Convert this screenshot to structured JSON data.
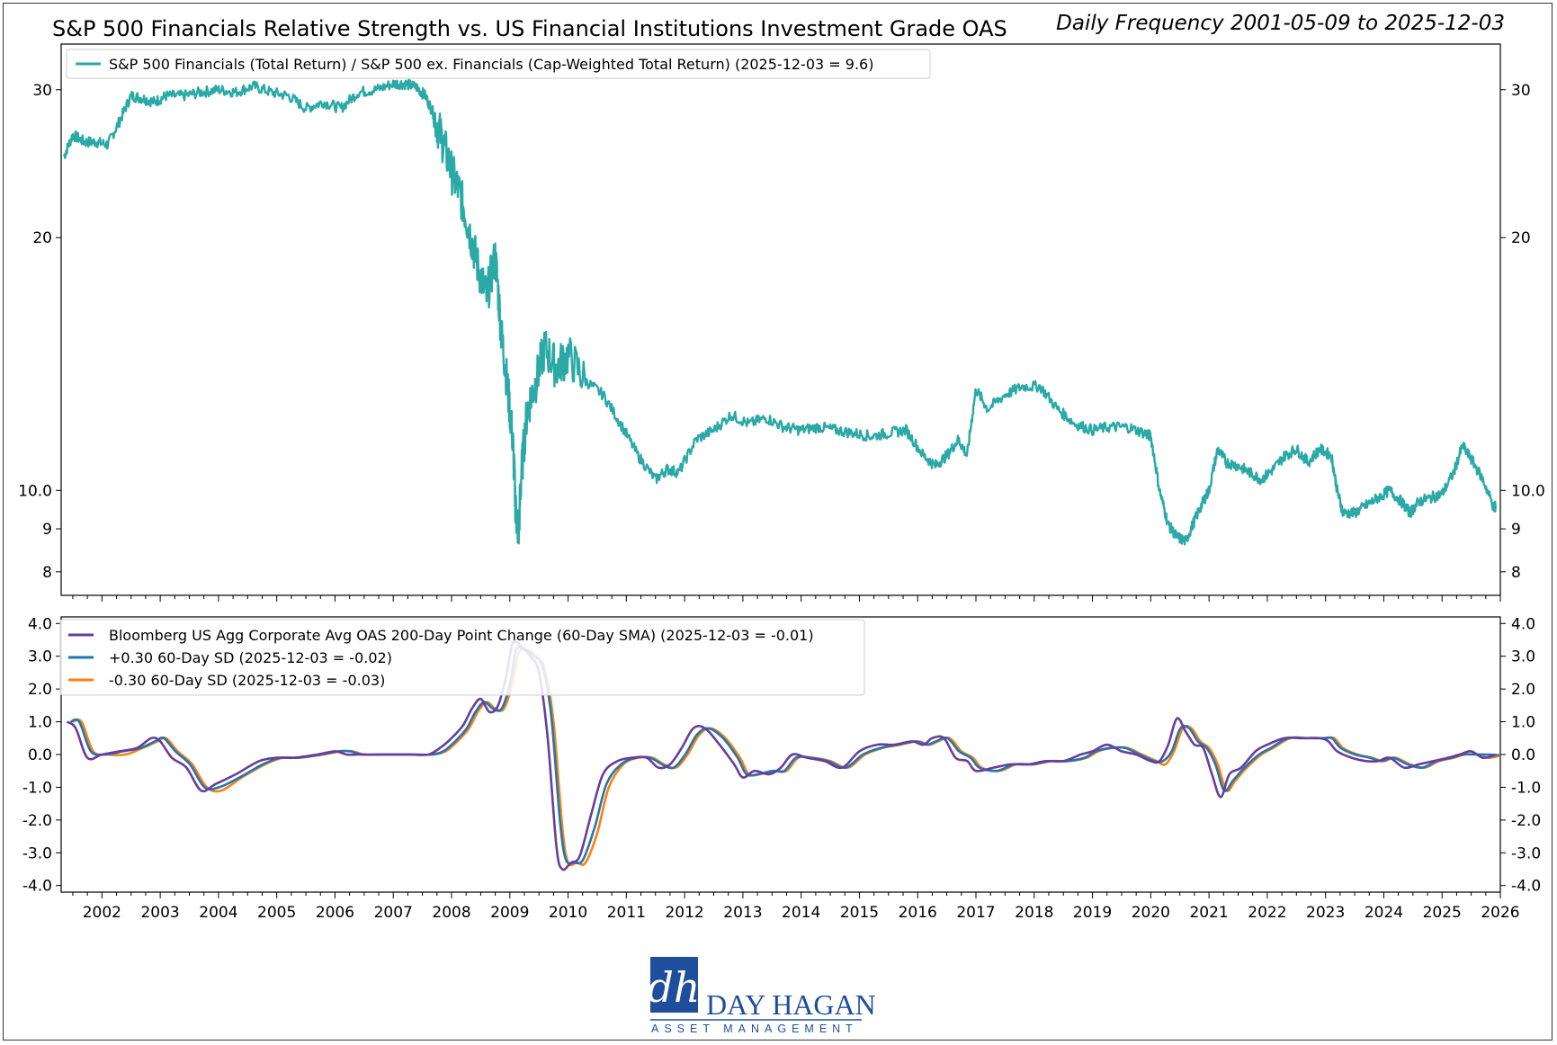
{
  "title": "S&P 500 Financials Relative Strength vs. US Financial Institutions Investment Grade OAS",
  "subtitle": "Daily Frequency 2001-05-09 to 2025-12-03",
  "logo": {
    "mark": "dh",
    "name": "DAY HAGAN",
    "tagline": "ASSET MANAGEMENT",
    "color": "#1f4e9c"
  },
  "chart_data": [
    {
      "type": "line",
      "panel": "top",
      "yscale": "log",
      "ylim": [
        7.5,
        34
      ],
      "yticks": [
        8,
        9,
        10,
        20,
        30
      ],
      "ytick_labels": [
        "8",
        "9",
        "10.0",
        "20",
        "30"
      ],
      "xlim": [
        2001.3,
        2026.0
      ],
      "legend_location": "top-left",
      "series": [
        {
          "name": "S&P 500 Financials (Total Return) / S&P 500 ex. Financials (Cap-Weighted Total Return) (2025-12-03 = 9.6)",
          "color": "#2aa9a6",
          "x": [
            2001.35,
            2001.5,
            2001.7,
            2001.9,
            2002.1,
            2002.3,
            2002.5,
            2002.7,
            2002.9,
            2003.1,
            2003.4,
            2003.7,
            2004.0,
            2004.3,
            2004.6,
            2004.9,
            2005.2,
            2005.5,
            2005.8,
            2006.1,
            2006.4,
            2006.7,
            2007.0,
            2007.2,
            2007.4,
            2007.55,
            2007.7,
            2007.85,
            2008.0,
            2008.15,
            2008.3,
            2008.45,
            2008.6,
            2008.75,
            2008.85,
            2008.95,
            2009.05,
            2009.1,
            2009.15,
            2009.2,
            2009.3,
            2009.45,
            2009.6,
            2009.8,
            2010.0,
            2010.3,
            2010.6,
            2010.9,
            2011.2,
            2011.5,
            2011.7,
            2011.9,
            2012.2,
            2012.5,
            2012.8,
            2013.1,
            2013.4,
            2013.7,
            2014.0,
            2014.3,
            2014.6,
            2014.9,
            2015.2,
            2015.5,
            2015.8,
            2016.1,
            2016.3,
            2016.5,
            2016.7,
            2016.85,
            2017.0,
            2017.2,
            2017.5,
            2017.8,
            2018.1,
            2018.4,
            2018.7,
            2019.0,
            2019.3,
            2019.6,
            2019.9,
            2020.0,
            2020.15,
            2020.3,
            2020.45,
            2020.6,
            2020.75,
            2020.9,
            2021.0,
            2021.15,
            2021.3,
            2021.5,
            2021.7,
            2021.9,
            2022.1,
            2022.3,
            2022.5,
            2022.7,
            2022.9,
            2023.1,
            2023.2,
            2023.3,
            2023.5,
            2023.7,
            2023.9,
            2024.1,
            2024.3,
            2024.45,
            2024.6,
            2024.8,
            2025.0,
            2025.2,
            2025.35,
            2025.5,
            2025.7,
            2025.9,
            2025.92
          ],
          "values": [
            25.0,
            26.5,
            26.0,
            26.0,
            25.8,
            27.5,
            29.5,
            29.3,
            29.0,
            29.5,
            29.5,
            29.8,
            30.0,
            29.8,
            30.3,
            29.8,
            29.5,
            28.5,
            29.0,
            28.5,
            29.8,
            30.0,
            30.5,
            30.5,
            30.2,
            29.5,
            28.0,
            26.0,
            24.0,
            22.5,
            20.5,
            18.5,
            17.0,
            19.0,
            15.5,
            13.5,
            11.5,
            9.5,
            8.9,
            10.5,
            12.5,
            13.5,
            14.8,
            14.0,
            14.5,
            13.5,
            13.0,
            12.0,
            11.0,
            10.3,
            10.6,
            10.5,
            11.5,
            11.8,
            12.3,
            12.0,
            12.2,
            11.9,
            11.8,
            11.9,
            11.8,
            11.7,
            11.6,
            11.7,
            11.8,
            11.0,
            10.7,
            11.0,
            11.5,
            11.0,
            13.2,
            12.5,
            13.0,
            13.3,
            13.3,
            12.5,
            12.0,
            11.8,
            11.9,
            11.9,
            11.7,
            11.6,
            10.0,
            9.1,
            8.8,
            8.7,
            9.2,
            9.7,
            10.0,
            11.2,
            10.8,
            10.7,
            10.5,
            10.3,
            10.6,
            11.0,
            11.2,
            10.8,
            11.2,
            11.0,
            10.0,
            9.4,
            9.4,
            9.6,
            9.8,
            10.0,
            9.7,
            9.4,
            9.7,
            9.8,
            9.9,
            10.5,
            11.3,
            10.9,
            10.3,
            9.5,
            9.6
          ]
        }
      ]
    },
    {
      "type": "line",
      "panel": "bottom",
      "ylim": [
        -4.2,
        4.2
      ],
      "yticks": [
        -4,
        -3,
        -2,
        -1,
        0,
        1,
        2,
        3,
        4
      ],
      "ytick_labels": [
        "-4.0",
        "-3.0",
        "-2.0",
        "-1.0",
        "0.0",
        "1.0",
        "2.0",
        "3.0",
        "4.0"
      ],
      "xlim": [
        2001.3,
        2026.0
      ],
      "xticks": [
        2002,
        2003,
        2004,
        2005,
        2006,
        2007,
        2008,
        2009,
        2010,
        2011,
        2012,
        2013,
        2014,
        2015,
        2016,
        2017,
        2018,
        2019,
        2020,
        2021,
        2022,
        2023,
        2024,
        2025,
        2026
      ],
      "xtick_labels": [
        "2002",
        "2003",
        "2004",
        "2005",
        "2006",
        "2007",
        "2008",
        "2009",
        "2010",
        "2011",
        "2012",
        "2013",
        "2014",
        "2015",
        "2016",
        "2017",
        "2018",
        "2019",
        "2020",
        "2021",
        "2022",
        "2023",
        "2024",
        "2025",
        "2026"
      ],
      "legend_location": "top-left",
      "x": [
        2001.4,
        2001.55,
        2001.75,
        2002.0,
        2002.3,
        2002.6,
        2002.85,
        2003.0,
        2003.2,
        2003.45,
        2003.7,
        2003.95,
        2004.3,
        2004.7,
        2005.0,
        2005.3,
        2005.7,
        2006.0,
        2006.2,
        2006.4,
        2006.7,
        2007.0,
        2007.3,
        2007.6,
        2007.8,
        2008.0,
        2008.2,
        2008.35,
        2008.5,
        2008.65,
        2008.8,
        2008.95,
        2009.05,
        2009.2,
        2009.35,
        2009.5,
        2009.65,
        2009.8,
        2009.9,
        2010.05,
        2010.2,
        2010.4,
        2010.6,
        2010.85,
        2011.1,
        2011.35,
        2011.55,
        2011.75,
        2011.95,
        2012.15,
        2012.35,
        2012.6,
        2012.85,
        2013.0,
        2013.2,
        2013.45,
        2013.65,
        2013.85,
        2014.1,
        2014.4,
        2014.7,
        2015.0,
        2015.3,
        2015.6,
        2015.9,
        2016.1,
        2016.25,
        2016.45,
        2016.65,
        2016.85,
        2017.0,
        2017.3,
        2017.6,
        2017.9,
        2018.2,
        2018.5,
        2018.8,
        2019.0,
        2019.25,
        2019.5,
        2019.75,
        2020.0,
        2020.15,
        2020.3,
        2020.45,
        2020.6,
        2020.75,
        2020.9,
        2021.05,
        2021.2,
        2021.35,
        2021.55,
        2021.8,
        2022.0,
        2022.3,
        2022.6,
        2022.9,
        2023.05,
        2023.2,
        2023.45,
        2023.7,
        2023.9,
        2024.1,
        2024.35,
        2024.6,
        2024.85,
        2025.1,
        2025.3,
        2025.5,
        2025.7,
        2025.92
      ],
      "series": [
        {
          "name": "Bloomberg US Agg Corporate Avg OAS 200-Day Point Change (60-Day SMA) (2025-12-03 = -0.01)",
          "color": "#6a3d9a",
          "values": [
            1.0,
            0.8,
            -0.1,
            0.0,
            0.1,
            0.2,
            0.5,
            0.4,
            -0.1,
            -0.4,
            -1.1,
            -0.9,
            -0.6,
            -0.2,
            -0.1,
            -0.1,
            0.0,
            0.1,
            0.0,
            0.0,
            0.0,
            0.0,
            0.0,
            0.0,
            0.2,
            0.5,
            0.9,
            1.4,
            1.7,
            1.3,
            1.5,
            2.5,
            3.4,
            3.3,
            3.0,
            2.5,
            0.5,
            -2.8,
            -3.5,
            -3.3,
            -3.1,
            -1.8,
            -0.6,
            -0.2,
            -0.1,
            -0.1,
            -0.4,
            -0.3,
            0.2,
            0.8,
            0.8,
            0.3,
            -0.3,
            -0.7,
            -0.5,
            -0.6,
            -0.4,
            0.0,
            -0.1,
            -0.2,
            -0.4,
            0.1,
            0.3,
            0.3,
            0.4,
            0.3,
            0.5,
            0.5,
            -0.1,
            -0.2,
            -0.5,
            -0.4,
            -0.3,
            -0.3,
            -0.2,
            -0.2,
            0.0,
            0.1,
            0.3,
            0.1,
            0.0,
            -0.2,
            -0.2,
            0.3,
            1.1,
            0.7,
            0.3,
            0.2,
            -0.6,
            -1.3,
            -0.6,
            -0.4,
            0.1,
            0.3,
            0.5,
            0.5,
            0.5,
            0.4,
            0.1,
            -0.1,
            -0.2,
            -0.2,
            -0.1,
            -0.4,
            -0.3,
            -0.2,
            -0.1,
            0.0,
            0.1,
            -0.1,
            -0.01
          ]
        },
        {
          "name": "+0.30 60-Day SD (2025-12-03 = -0.02)",
          "color": "#1f77b4",
          "lag": 0.06,
          "values": [
            1.0,
            1.0,
            0.1,
            0.0,
            0.1,
            0.2,
            0.4,
            0.5,
            0.1,
            -0.3,
            -1.0,
            -1.0,
            -0.7,
            -0.3,
            -0.1,
            -0.1,
            0.0,
            0.1,
            0.1,
            0.0,
            0.0,
            0.0,
            0.0,
            0.0,
            0.1,
            0.4,
            0.8,
            1.3,
            1.6,
            1.4,
            1.4,
            2.2,
            3.2,
            3.2,
            3.0,
            2.7,
            1.2,
            -2.0,
            -3.2,
            -3.3,
            -3.2,
            -2.2,
            -0.9,
            -0.3,
            -0.1,
            -0.1,
            -0.3,
            -0.4,
            0.0,
            0.6,
            0.8,
            0.5,
            -0.1,
            -0.6,
            -0.6,
            -0.5,
            -0.5,
            -0.1,
            -0.1,
            -0.2,
            -0.4,
            0.0,
            0.2,
            0.3,
            0.4,
            0.3,
            0.4,
            0.5,
            0.1,
            -0.1,
            -0.4,
            -0.5,
            -0.3,
            -0.3,
            -0.2,
            -0.2,
            -0.1,
            0.1,
            0.2,
            0.2,
            0.0,
            -0.2,
            -0.2,
            0.1,
            0.8,
            0.8,
            0.4,
            0.2,
            -0.3,
            -1.1,
            -0.8,
            -0.4,
            0.0,
            0.2,
            0.5,
            0.5,
            0.5,
            0.5,
            0.2,
            0.0,
            -0.1,
            -0.2,
            -0.1,
            -0.3,
            -0.4,
            -0.2,
            -0.1,
            0.0,
            0.0,
            0.0,
            -0.02
          ]
        },
        {
          "name": "-0.30 60-Day SD (2025-12-03 = -0.03)",
          "color": "#ff7f0e",
          "lag": 0.1,
          "values": [
            1.0,
            1.0,
            0.1,
            0.0,
            0.0,
            0.2,
            0.4,
            0.5,
            0.1,
            -0.3,
            -1.0,
            -1.1,
            -0.7,
            -0.3,
            -0.1,
            -0.1,
            0.0,
            0.1,
            0.1,
            0.0,
            0.0,
            0.0,
            0.0,
            0.0,
            0.1,
            0.4,
            0.8,
            1.3,
            1.6,
            1.4,
            1.4,
            2.2,
            3.1,
            3.2,
            3.0,
            2.6,
            1.0,
            -2.2,
            -3.3,
            -3.3,
            -3.3,
            -2.4,
            -1.0,
            -0.3,
            -0.1,
            -0.1,
            -0.3,
            -0.4,
            0.0,
            0.6,
            0.8,
            0.5,
            -0.1,
            -0.6,
            -0.6,
            -0.5,
            -0.5,
            -0.1,
            -0.1,
            -0.2,
            -0.4,
            0.0,
            0.2,
            0.3,
            0.4,
            0.3,
            0.4,
            0.5,
            0.1,
            -0.1,
            -0.4,
            -0.5,
            -0.3,
            -0.3,
            -0.2,
            -0.2,
            -0.1,
            0.1,
            0.2,
            0.2,
            0.0,
            -0.2,
            -0.3,
            0.1,
            0.8,
            0.8,
            0.4,
            0.2,
            -0.3,
            -1.1,
            -0.8,
            -0.4,
            0.0,
            0.2,
            0.5,
            0.5,
            0.5,
            0.5,
            0.2,
            0.0,
            -0.1,
            -0.2,
            -0.1,
            -0.3,
            -0.4,
            -0.2,
            -0.1,
            0.0,
            0.0,
            -0.1,
            -0.03
          ]
        }
      ]
    }
  ]
}
